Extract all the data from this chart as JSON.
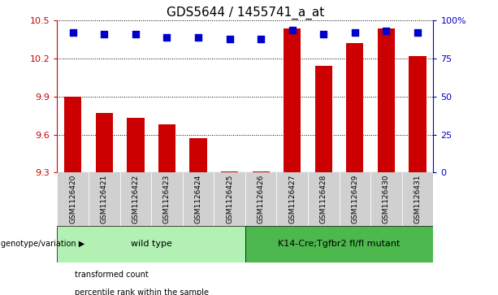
{
  "title": "GDS5644 / 1455741_a_at",
  "samples": [
    "GSM1126420",
    "GSM1126421",
    "GSM1126422",
    "GSM1126423",
    "GSM1126424",
    "GSM1126425",
    "GSM1126426",
    "GSM1126427",
    "GSM1126428",
    "GSM1126429",
    "GSM1126430",
    "GSM1126431"
  ],
  "transformed_counts": [
    9.9,
    9.77,
    9.73,
    9.68,
    9.57,
    9.31,
    9.31,
    10.44,
    10.14,
    10.32,
    10.44,
    10.22
  ],
  "percentile_ranks": [
    92,
    91,
    91,
    89,
    89,
    88,
    88,
    94,
    91,
    92,
    93,
    92
  ],
  "ylim": [
    9.3,
    10.5
  ],
  "ylim_right": [
    0,
    100
  ],
  "yticks_left": [
    9.3,
    9.6,
    9.9,
    10.2,
    10.5
  ],
  "yticks_right": [
    0,
    25,
    50,
    75,
    100
  ],
  "bar_color": "#cc0000",
  "dot_color": "#0000cc",
  "groups": [
    {
      "label": "wild type",
      "start": 0,
      "end": 6,
      "color": "#b3f0b3"
    },
    {
      "label": "K14-Cre;Tgfbr2 fl/fl mutant",
      "start": 6,
      "end": 12,
      "color": "#4db84d"
    }
  ],
  "group_row_label": "genotype/variation",
  "legend": [
    {
      "label": "transformed count",
      "color": "#cc0000"
    },
    {
      "label": "percentile rank within the sample",
      "color": "#0000cc"
    }
  ],
  "bar_width": 0.55,
  "dot_size": 35,
  "tick_fontsize": 8,
  "title_fontsize": 11,
  "label_fontsize": 8,
  "xtick_fontsize": 6.5,
  "xtick_bg": "#d0d0d0"
}
